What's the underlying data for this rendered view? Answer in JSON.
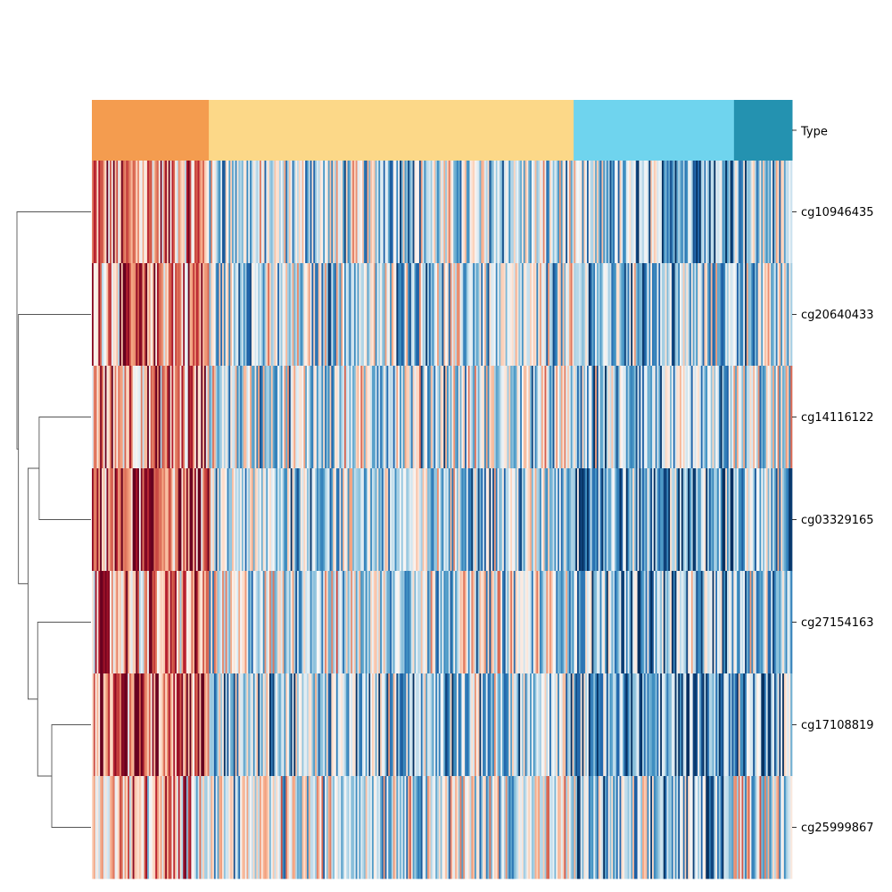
{
  "chart_data": {
    "type": "heatmap",
    "subtype": "clustermap",
    "colormap": "RdBu_r",
    "grid": false,
    "legend": "none",
    "col_colors": {
      "label": "Type",
      "groups": [
        {
          "color": "#f49c4f",
          "fraction": 0.167
        },
        {
          "color": "#fcd888",
          "fraction": 0.521
        },
        {
          "color": "#6fd4ee",
          "fraction": 0.229
        },
        {
          "color": "#2492b0",
          "fraction": 0.083
        }
      ],
      "group_means": [
        0.72,
        0.38,
        0.26,
        0.32
      ]
    },
    "rows": [
      "cg10946435",
      "cg20640433",
      "cg14116122",
      "cg03329165",
      "cg27154163",
      "cg17108819",
      "cg25999867"
    ],
    "row_group_means": [
      [
        0.7,
        0.4,
        0.3,
        0.36
      ],
      [
        0.74,
        0.39,
        0.33,
        0.37
      ],
      [
        0.72,
        0.42,
        0.31,
        0.4
      ],
      [
        0.8,
        0.38,
        0.24,
        0.31
      ],
      [
        0.69,
        0.44,
        0.29,
        0.33
      ],
      [
        0.84,
        0.34,
        0.23,
        0.3
      ],
      [
        0.62,
        0.46,
        0.3,
        0.52
      ]
    ],
    "n_columns": 430,
    "row_dendrogram": [
      {
        "left": 5,
        "right": 6,
        "height": 0.53
      },
      {
        "left": 4,
        "right": 7,
        "height": 0.72
      },
      {
        "left": 2,
        "right": 3,
        "height": 0.7
      },
      {
        "left": 9,
        "right": 8,
        "height": 0.85
      },
      {
        "left": 1,
        "right": 10,
        "height": 0.98
      },
      {
        "left": 0,
        "right": 11,
        "height": 1.0
      }
    ]
  }
}
